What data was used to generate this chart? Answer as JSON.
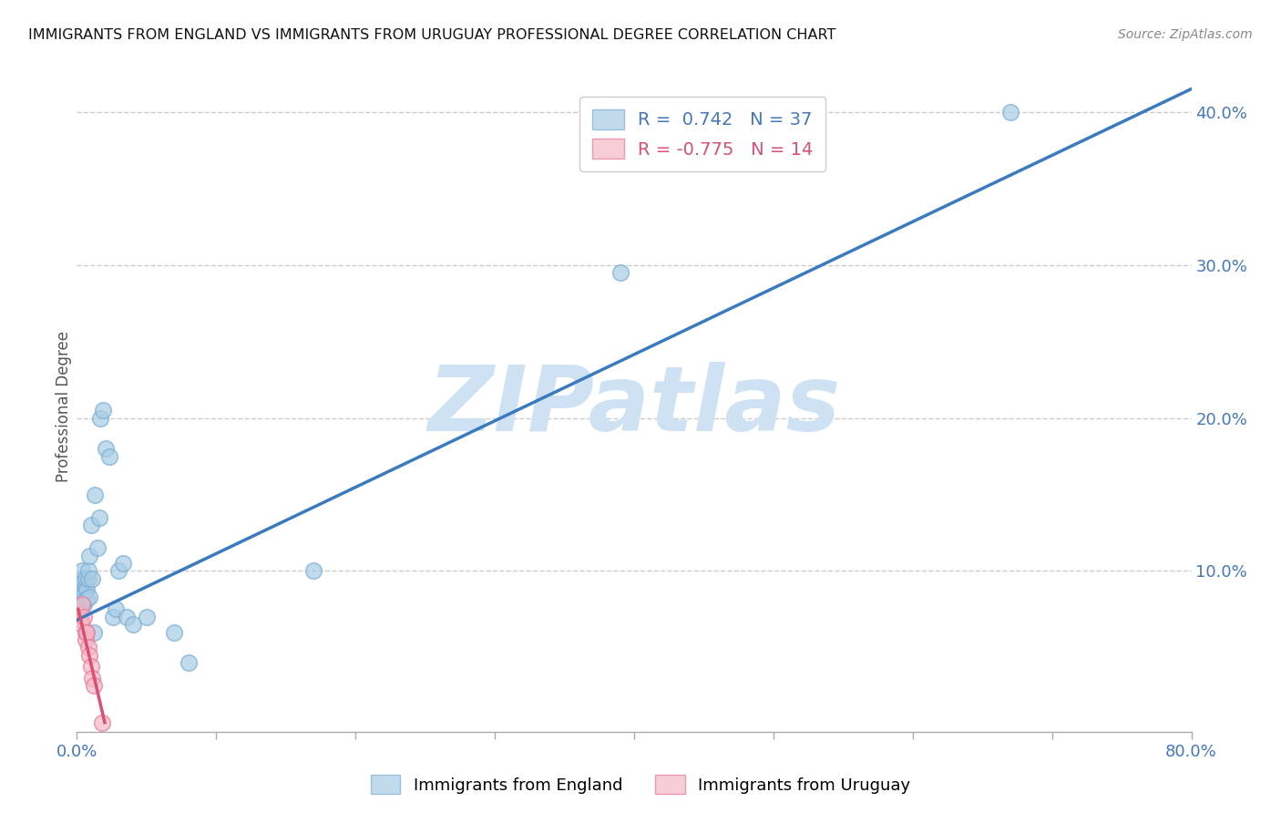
{
  "title": "IMMIGRANTS FROM ENGLAND VS IMMIGRANTS FROM URUGUAY PROFESSIONAL DEGREE CORRELATION CHART",
  "source": "Source: ZipAtlas.com",
  "ylabel": "Professional Degree",
  "xlim": [
    0.0,
    0.8
  ],
  "ylim": [
    -0.005,
    0.42
  ],
  "xticks": [
    0.0,
    0.1,
    0.2,
    0.3,
    0.4,
    0.5,
    0.6,
    0.7,
    0.8
  ],
  "xticklabels": [
    "0.0%",
    "",
    "",
    "",
    "",
    "",
    "",
    "",
    "80.0%"
  ],
  "yticks_right": [
    0.1,
    0.2,
    0.3,
    0.4
  ],
  "ytick_labels_right": [
    "10.0%",
    "20.0%",
    "30.0%",
    "40.0%"
  ],
  "grid_color": "#cccccc",
  "background_color": "#ffffff",
  "watermark_text": "ZIPatlas",
  "watermark_color": "#cfe2f3",
  "england_color": "#a8cce4",
  "england_edge_color": "#7bafd4",
  "uruguay_color": "#f4b8c8",
  "uruguay_edge_color": "#e87a97",
  "england_line_color": "#3a7abf",
  "uruguay_line_color": "#d95070",
  "R_england": 0.742,
  "N_england": 37,
  "R_uruguay": -0.775,
  "N_uruguay": 14,
  "england_scatter_x": [
    0.002,
    0.003,
    0.003,
    0.004,
    0.004,
    0.005,
    0.005,
    0.006,
    0.006,
    0.007,
    0.007,
    0.008,
    0.008,
    0.009,
    0.009,
    0.01,
    0.011,
    0.012,
    0.013,
    0.015,
    0.016,
    0.017,
    0.019,
    0.021,
    0.023,
    0.026,
    0.028,
    0.03,
    0.033,
    0.036,
    0.04,
    0.05,
    0.07,
    0.08,
    0.17,
    0.39,
    0.67
  ],
  "england_scatter_y": [
    0.09,
    0.095,
    0.085,
    0.1,
    0.08,
    0.085,
    0.078,
    0.09,
    0.095,
    0.088,
    0.082,
    0.095,
    0.1,
    0.11,
    0.083,
    0.13,
    0.095,
    0.06,
    0.15,
    0.115,
    0.135,
    0.2,
    0.205,
    0.18,
    0.175,
    0.07,
    0.075,
    0.1,
    0.105,
    0.07,
    0.065,
    0.07,
    0.06,
    0.04,
    0.1,
    0.295,
    0.4
  ],
  "uruguay_scatter_x": [
    0.002,
    0.003,
    0.004,
    0.004,
    0.005,
    0.006,
    0.006,
    0.007,
    0.008,
    0.009,
    0.01,
    0.011,
    0.012,
    0.018
  ],
  "uruguay_scatter_y": [
    0.072,
    0.068,
    0.078,
    0.065,
    0.07,
    0.06,
    0.055,
    0.06,
    0.05,
    0.045,
    0.038,
    0.03,
    0.025,
    0.001
  ],
  "england_line_x": [
    0.0,
    0.8
  ],
  "england_line_y": [
    0.068,
    0.415
  ],
  "uruguay_line_x": [
    0.001,
    0.02
  ],
  "uruguay_line_y": [
    0.075,
    0.001
  ]
}
